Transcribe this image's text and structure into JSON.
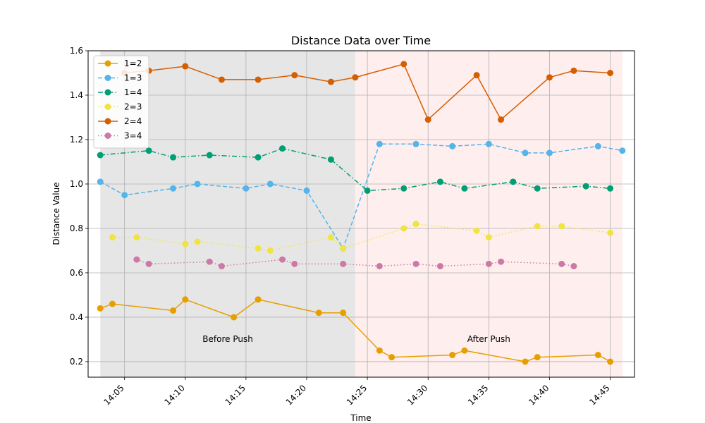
{
  "chart_data": {
    "type": "line",
    "title": "Distance Data over Time",
    "xlabel": "Time",
    "ylabel": "Distance Value",
    "x_axis": {
      "type": "time",
      "range": [
        "14:02",
        "14:47"
      ],
      "ticks": [
        "14:05",
        "14:10",
        "14:15",
        "14:20",
        "14:25",
        "14:30",
        "14:35",
        "14:40",
        "14:45"
      ],
      "tick_rotation_deg": -45
    },
    "y_axis": {
      "range": [
        0.13,
        1.6
      ],
      "ticks": [
        0.2,
        0.4,
        0.6,
        0.8,
        1.0,
        1.2,
        1.4,
        1.6
      ],
      "tick_labels": [
        "0.2",
        "0.4",
        "0.6",
        "0.8",
        "1.0",
        "1.2",
        "1.4",
        "1.6"
      ]
    },
    "grid": true,
    "legend": {
      "placement": "top-left"
    },
    "regions": [
      {
        "label": "Before Push",
        "from": "14:03",
        "to": "14:24",
        "color": "#e6e6e6"
      },
      {
        "label": "After Push",
        "from": "14:24",
        "to": "14:46",
        "color": "#ffeeee"
      }
    ],
    "series": [
      {
        "name": "1=2",
        "color": "#e69f00",
        "style": "solid",
        "points": [
          [
            "14:03",
            0.44
          ],
          [
            "14:04",
            0.46
          ],
          [
            "14:09",
            0.43
          ],
          [
            "14:10",
            0.48
          ],
          [
            "14:14",
            0.4
          ],
          [
            "14:16",
            0.48
          ],
          [
            "14:21",
            0.42
          ],
          [
            "14:23",
            0.42
          ],
          [
            "14:26",
            0.25
          ],
          [
            "14:27",
            0.22
          ],
          [
            "14:32",
            0.23
          ],
          [
            "14:33",
            0.25
          ],
          [
            "14:38",
            0.2
          ],
          [
            "14:39",
            0.22
          ],
          [
            "14:44",
            0.23
          ],
          [
            "14:45",
            0.2
          ]
        ]
      },
      {
        "name": "1=3",
        "color": "#56b4e9",
        "style": "dashed",
        "points": [
          [
            "14:03",
            1.01
          ],
          [
            "14:05",
            0.95
          ],
          [
            "14:09",
            0.98
          ],
          [
            "14:11",
            1.0
          ],
          [
            "14:15",
            0.98
          ],
          [
            "14:17",
            1.0
          ],
          [
            "14:20",
            0.97
          ],
          [
            "14:23",
            0.71
          ],
          [
            "14:26",
            1.18
          ],
          [
            "14:29",
            1.18
          ],
          [
            "14:32",
            1.17
          ],
          [
            "14:35",
            1.18
          ],
          [
            "14:38",
            1.14
          ],
          [
            "14:40",
            1.14
          ],
          [
            "14:44",
            1.17
          ],
          [
            "14:46",
            1.15
          ]
        ]
      },
      {
        "name": "1=4",
        "color": "#009e73",
        "style": "dashdot",
        "points": [
          [
            "14:03",
            1.13
          ],
          [
            "14:07",
            1.15
          ],
          [
            "14:09",
            1.12
          ],
          [
            "14:12",
            1.13
          ],
          [
            "14:16",
            1.12
          ],
          [
            "14:18",
            1.16
          ],
          [
            "14:22",
            1.11
          ],
          [
            "14:25",
            0.97
          ],
          [
            "14:28",
            0.98
          ],
          [
            "14:31",
            1.01
          ],
          [
            "14:33",
            0.98
          ],
          [
            "14:37",
            1.01
          ],
          [
            "14:39",
            0.98
          ],
          [
            "14:43",
            0.99
          ],
          [
            "14:45",
            0.98
          ]
        ]
      },
      {
        "name": "2=3",
        "color": "#f0e442",
        "style": "dotted",
        "points": [
          [
            "14:04",
            0.76
          ],
          [
            "14:06",
            0.76
          ],
          [
            "14:10",
            0.73
          ],
          [
            "14:11",
            0.74
          ],
          [
            "14:16",
            0.71
          ],
          [
            "14:17",
            0.7
          ],
          [
            "14:22",
            0.76
          ],
          [
            "14:23",
            0.71
          ],
          [
            "14:28",
            0.8
          ],
          [
            "14:29",
            0.82
          ],
          [
            "14:34",
            0.79
          ],
          [
            "14:35",
            0.76
          ],
          [
            "14:39",
            0.81
          ],
          [
            "14:41",
            0.81
          ],
          [
            "14:45",
            0.78
          ]
        ]
      },
      {
        "name": "2=4",
        "color": "#d55e00",
        "style": "solid",
        "points": [
          [
            "14:05",
            1.5
          ],
          [
            "14:07",
            1.51
          ],
          [
            "14:10",
            1.53
          ],
          [
            "14:13",
            1.47
          ],
          [
            "14:16",
            1.47
          ],
          [
            "14:19",
            1.49
          ],
          [
            "14:22",
            1.46
          ],
          [
            "14:24",
            1.48
          ],
          [
            "14:28",
            1.54
          ],
          [
            "14:30",
            1.29
          ],
          [
            "14:34",
            1.49
          ],
          [
            "14:36",
            1.29
          ],
          [
            "14:40",
            1.48
          ],
          [
            "14:42",
            1.51
          ],
          [
            "14:45",
            1.5
          ]
        ]
      },
      {
        "name": "3=4",
        "color": "#cc79a7",
        "style": "dotted",
        "points": [
          [
            "14:06",
            0.66
          ],
          [
            "14:07",
            0.64
          ],
          [
            "14:12",
            0.65
          ],
          [
            "14:13",
            0.63
          ],
          [
            "14:18",
            0.66
          ],
          [
            "14:19",
            0.64
          ],
          [
            "14:23",
            0.64
          ],
          [
            "14:26",
            0.63
          ],
          [
            "14:29",
            0.64
          ],
          [
            "14:31",
            0.63
          ],
          [
            "14:35",
            0.64
          ],
          [
            "14:36",
            0.65
          ],
          [
            "14:41",
            0.64
          ],
          [
            "14:42",
            0.63
          ]
        ]
      }
    ]
  }
}
